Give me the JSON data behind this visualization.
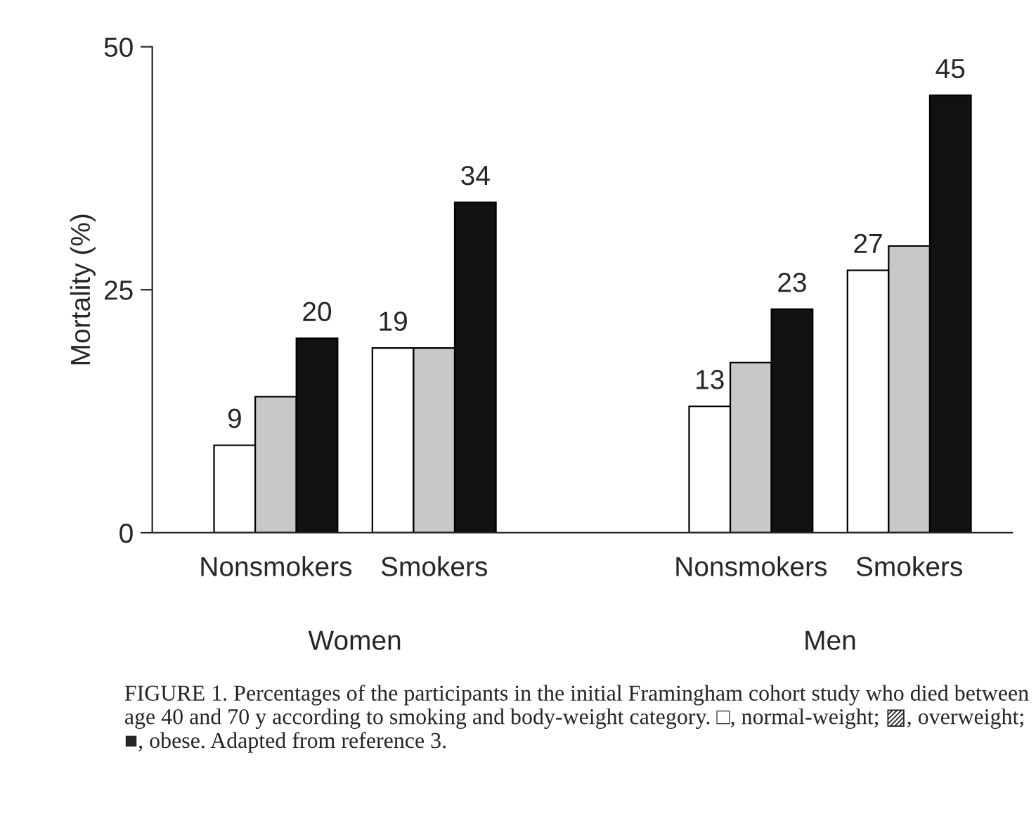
{
  "chart_data": {
    "type": "bar",
    "ylabel": "Mortality (%)",
    "categories": [
      "Nonsmokers",
      "Smokers",
      null,
      "Nonsmokers",
      "Smokers"
    ],
    "series": [
      {
        "color": "#ffffff",
        "values": [
          9,
          19,
          null,
          13,
          27
        ],
        "value_labels": [
          "9",
          "19",
          null,
          "13",
          "27"
        ]
      },
      {
        "color": "#c8c8c8",
        "values": [
          14,
          19,
          null,
          17.5,
          29.5
        ]
      },
      {
        "color": "#111111",
        "values": [
          20,
          34,
          null,
          23,
          45
        ],
        "value_labels": [
          "20",
          "34",
          null,
          "23",
          "45"
        ]
      }
    ],
    "ylim": [
      0,
      50
    ],
    "yticks": [
      0,
      25,
      50
    ],
    "grid": false,
    "legend": false,
    "annotations": [
      "Women",
      "Men",
      "FIGURE 1. Percentages of the participants in the initial Framingham cohort study who died between age 40 and 70 y according to smoking and body-weight category. □, normal-weight; ▨, overweight; ■, obese. Adapted from reference 3."
    ]
  }
}
